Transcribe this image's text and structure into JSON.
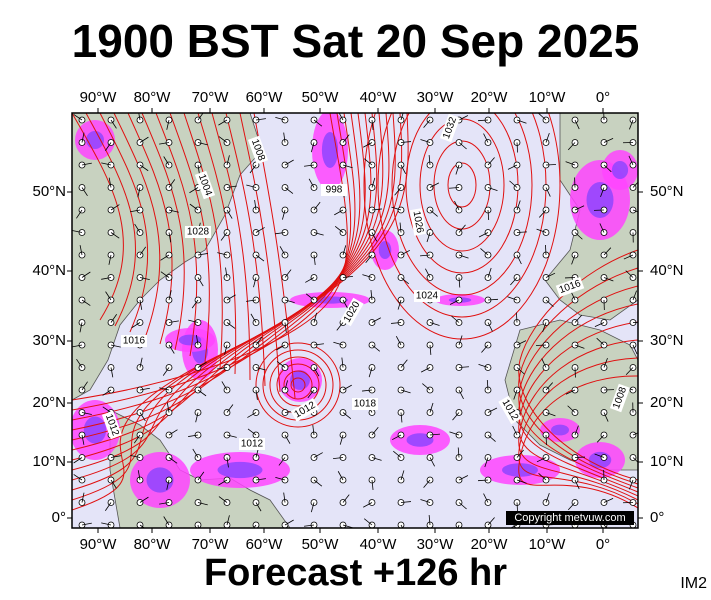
{
  "header": {
    "title": "1900 BST Sat 20 Sep 2025"
  },
  "map": {
    "lon_labels": [
      "90°W",
      "80°W",
      "70°W",
      "60°W",
      "50°W",
      "40°W",
      "30°W",
      "20°W",
      "10°W",
      "0°"
    ],
    "lat_labels": [
      "50°N",
      "40°N",
      "30°N",
      "20°N",
      "10°N",
      "0°"
    ],
    "isobar_labels": [
      "1032",
      "1028",
      "1026",
      "1024",
      "1020",
      "1016",
      "1016",
      "1012",
      "1012",
      "1012",
      "1008",
      "1008",
      "1004",
      "998",
      "1018",
      "1012"
    ],
    "copyright": "Copyright metvuw.com"
  },
  "footer": {
    "forecast": "Forecast +126 hr",
    "code": "IM2"
  }
}
